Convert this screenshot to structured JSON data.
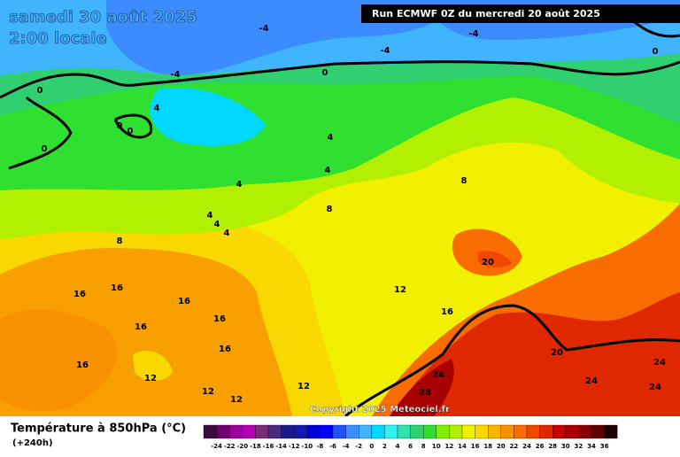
{
  "header": {
    "date": "samedi 30 août 2025",
    "time": "2:00 locale",
    "run": "Run ECMWF 0Z du mercredi 20 août 2025"
  },
  "copyright": "Copyright 2025 Meteociel.fr",
  "legend": {
    "title": "Température à 850hPa (°C)",
    "lead": "(+240h)",
    "ticks": [
      -24,
      -22,
      -20,
      -18,
      -16,
      -14,
      -12,
      -10,
      -8,
      -6,
      -4,
      -2,
      0,
      2,
      4,
      6,
      8,
      10,
      12,
      14,
      16,
      18,
      20,
      22,
      24,
      26,
      28,
      30,
      32,
      34,
      36
    ],
    "colors": [
      "#3d0a3d",
      "#6e006e",
      "#9a009a",
      "#b400b4",
      "#7a2a7a",
      "#4a2a7a",
      "#1a1a8a",
      "#1616b0",
      "#0000dd",
      "#0000ff",
      "#2050ff",
      "#3c8cff",
      "#40b4ff",
      "#00d8ff",
      "#30f0f0",
      "#30e0b0",
      "#30d070",
      "#30e030",
      "#80f000",
      "#b0f000",
      "#f0f000",
      "#f8d800",
      "#f8b400",
      "#f89000",
      "#f86c00",
      "#f04800",
      "#e02800",
      "#c80000",
      "#a80000",
      "#880000",
      "#600000",
      "#200000"
    ]
  },
  "contour_labels": [
    -4,
    -4,
    -4,
    -4,
    0,
    0,
    0,
    0,
    0,
    0,
    4,
    4,
    4,
    4,
    4,
    4,
    4,
    8,
    8,
    8,
    12,
    12,
    12,
    12,
    12,
    16,
    16,
    16,
    16,
    16,
    16,
    16,
    16,
    20,
    20,
    24,
    24,
    24,
    24,
    28
  ]
}
